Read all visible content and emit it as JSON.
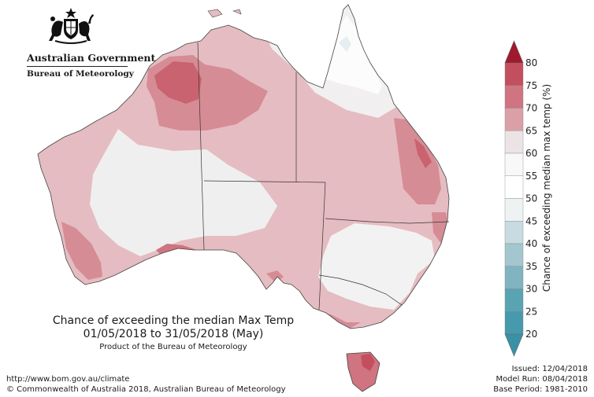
{
  "header": {
    "gov_name": "Australian Government",
    "bureau_name": "Bureau of Meteorology"
  },
  "map": {
    "caption_title": "Chance of exceeding the median Max Temp",
    "caption_period": "01/05/2018 to 31/05/2018 (May)",
    "caption_product": "Product of the Bureau of Meteorology"
  },
  "legend": {
    "title": "Chance of exceeding median max temp (%)",
    "ticks": [
      "80",
      "75",
      "70",
      "65",
      "60",
      "55",
      "50",
      "45",
      "40",
      "35",
      "30",
      "25",
      "20"
    ],
    "colors": [
      "#b02a41",
      "#c34f5e",
      "#cf7480",
      "#dba0a7",
      "#ece3e4",
      "#f8f8f8",
      "#ffffff",
      "#eef2f3",
      "#c7dbe0",
      "#a3c6cf",
      "#7fb4c0",
      "#5aa3b3",
      "#4799ac"
    ],
    "top_arrow_color": "#a0192e",
    "bottom_arrow_color": "#3a91a6"
  },
  "footer": {
    "url": "http://www.bom.gov.au/climate",
    "copyright": "© Commonwealth of Australia 2018, Australian Bureau of Meteorology",
    "issued": "Issued: 12/04/2018",
    "model_run": "Model Run: 08/04/2018",
    "base_period": "Base Period: 1981-2010"
  }
}
